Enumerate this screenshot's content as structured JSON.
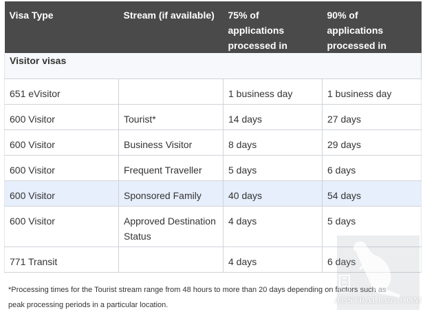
{
  "table": {
    "headers": [
      "Visa Type",
      "Stream (if available)",
      "75% of applications processed in",
      "90% of applications processed in"
    ],
    "section_title": "Visitor visas",
    "rows": [
      {
        "visa_type": "651 eVisitor",
        "stream": "",
        "p75": "1 business day",
        "p90": "1 business day"
      },
      {
        "visa_type": "600 Visitor",
        "stream": "Tourist*",
        "p75": "14 days",
        "p90": "27 days"
      },
      {
        "visa_type": "600 Visitor",
        "stream": "Business Visitor",
        "p75": "8 days",
        "p90": "29 days"
      },
      {
        "visa_type": "600 Visitor",
        "stream": "Frequent Traveller",
        "p75": "5 days",
        "p90": "6 days"
      },
      {
        "visa_type": "600 Visitor",
        "stream": "Sponsored Family",
        "p75": "40 days",
        "p90": "54 days"
      },
      {
        "visa_type": "600 Visitor",
        "stream": "Approved Destination Status",
        "p75": "4 days",
        "p90": "5 days"
      },
      {
        "visa_type": "771 Transit",
        "stream": "",
        "p75": "4 days",
        "p90": "6 days"
      }
    ]
  },
  "footnote": {
    "line1": "*Processing times for the Tourist stream range from 48 hours to more than 20 days depending on factors such as",
    "line2": "peak processing periods in a particular location."
  },
  "watermark": {
    "text": "AUSTRALIA51.COM",
    "icon": "kangaroo-icon"
  },
  "colors": {
    "header_bg": "#4a4a4a",
    "highlight_row_bg": "#e6effb",
    "section_row_bg": "#f7f8fb",
    "border": "#cfd3d8"
  }
}
